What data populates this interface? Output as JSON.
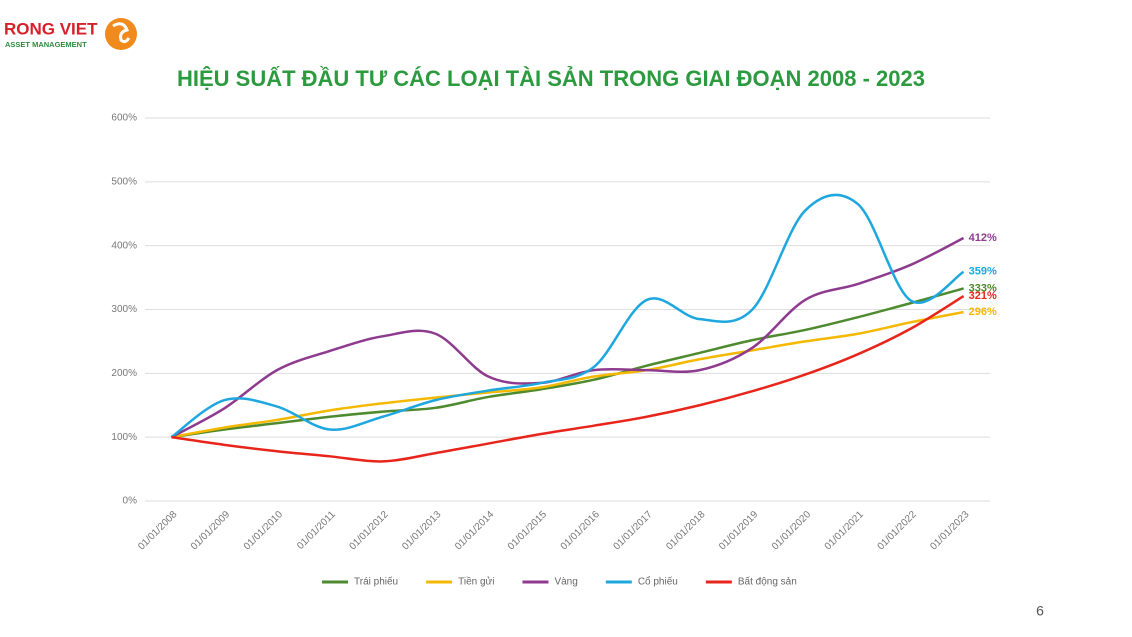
{
  "header": {
    "logo": "RONG VIET",
    "logo_sub": "ASSET MANAGEMENT"
  },
  "page_number": "6",
  "chart_data": {
    "type": "line",
    "title": "HIỆU SUẤT ĐẦU TƯ CÁC LOẠI TÀI SẢN TRONG GIAI ĐOẠN 2008 - 2023",
    "categories": [
      "01/01/2008",
      "01/01/2009",
      "01/01/2010",
      "01/01/2011",
      "01/01/2012",
      "01/01/2013",
      "01/01/2014",
      "01/01/2015",
      "01/01/2016",
      "01/01/2017",
      "01/01/2018",
      "01/01/2019",
      "01/01/2020",
      "01/01/2021",
      "01/01/2022",
      "01/01/2023"
    ],
    "ylim": [
      0,
      600
    ],
    "yticks": [
      {
        "value": 0,
        "label": "0%"
      },
      {
        "value": 100,
        "label": "100%"
      },
      {
        "value": 200,
        "label": "200%"
      },
      {
        "value": 300,
        "label": "300%"
      },
      {
        "value": 400,
        "label": "400%"
      },
      {
        "value": 500,
        "label": "500%"
      },
      {
        "value": 600,
        "label": "600%"
      }
    ],
    "grid": true,
    "legend": "bottom",
    "series": [
      {
        "name": "Trái phiếu",
        "color": "#4e8a2e",
        "values": [
          100,
          112,
          122,
          132,
          140,
          146,
          163,
          175,
          190,
          212,
          232,
          252,
          268,
          288,
          310,
          333
        ],
        "value_labels": [
          null,
          null,
          null,
          null,
          null,
          null,
          null,
          null,
          null,
          null,
          null,
          null,
          null,
          null,
          null,
          "333%"
        ]
      },
      {
        "name": "Tiền gửi",
        "color": "#f5b800",
        "values": [
          100,
          115,
          127,
          142,
          153,
          162,
          170,
          178,
          195,
          205,
          222,
          236,
          250,
          262,
          280,
          296
        ],
        "value_labels": [
          null,
          null,
          null,
          null,
          null,
          null,
          null,
          null,
          null,
          null,
          null,
          null,
          null,
          null,
          null,
          "296%"
        ]
      },
      {
        "name": "Vàng",
        "color": "#8e3a8e",
        "values": [
          100,
          145,
          205,
          235,
          258,
          262,
          195,
          185,
          205,
          205,
          205,
          240,
          315,
          340,
          370,
          412
        ],
        "value_labels": [
          null,
          null,
          null,
          null,
          null,
          null,
          null,
          null,
          null,
          null,
          null,
          null,
          null,
          null,
          null,
          "412%"
        ]
      },
      {
        "name": "Cổ phiếu",
        "color": "#1ea7df",
        "values": [
          100,
          158,
          148,
          112,
          132,
          158,
          173,
          185,
          210,
          315,
          285,
          300,
          455,
          465,
          314,
          359
        ],
        "value_labels": [
          null,
          null,
          null,
          null,
          null,
          null,
          null,
          null,
          null,
          null,
          null,
          null,
          null,
          null,
          null,
          "359%"
        ]
      },
      {
        "name": "Bất động sản",
        "color": "#e8251b",
        "values": [
          100,
          88,
          78,
          70,
          62,
          75,
          90,
          105,
          118,
          132,
          150,
          172,
          198,
          230,
          270,
          321
        ],
        "value_labels": [
          null,
          null,
          null,
          null,
          null,
          null,
          null,
          null,
          null,
          null,
          null,
          null,
          null,
          null,
          null,
          "321%"
        ]
      }
    ]
  }
}
